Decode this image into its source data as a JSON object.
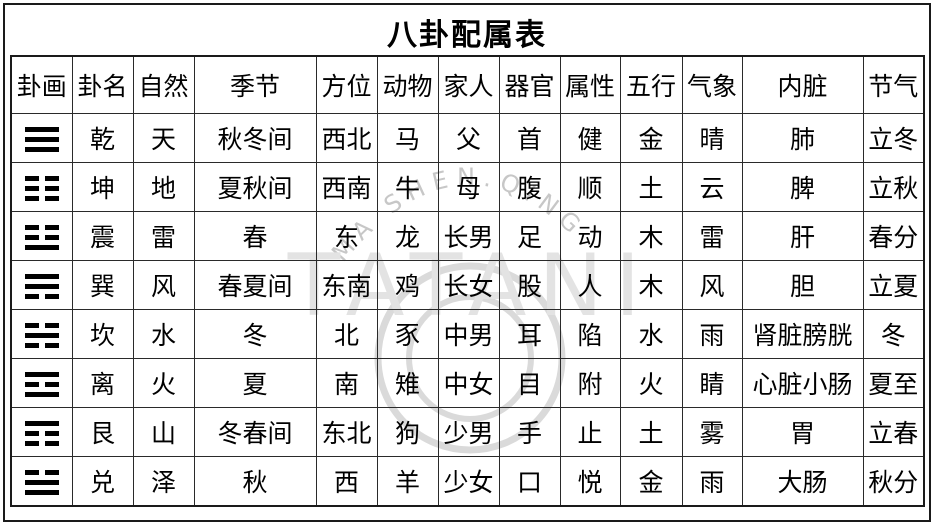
{
  "title": "八卦配属表",
  "watermark": {
    "arc_text": "MA SHEN.QING",
    "brand_text": "TATANI"
  },
  "colors": {
    "text": "#000000",
    "border": "#1a1a1a",
    "watermark_arc": "#c7c7c7",
    "watermark_ring": "#dadada",
    "watermark_brand": "#e3e3e3"
  },
  "table": {
    "columns": [
      "卦画",
      "卦名",
      "自然",
      "季节",
      "方位",
      "动物",
      "家人",
      "器官",
      "属性",
      "五行",
      "气象",
      "内脏",
      "节气"
    ],
    "rows": [
      {
        "trigram": [
          "solid",
          "solid",
          "solid"
        ],
        "cells": [
          "乾",
          "天",
          "秋冬间",
          "西北",
          "马",
          "父",
          "首",
          "健",
          "金",
          "晴",
          "肺",
          "立冬"
        ]
      },
      {
        "trigram": [
          "broken",
          "broken",
          "broken"
        ],
        "cells": [
          "坤",
          "地",
          "夏秋间",
          "西南",
          "牛",
          "母",
          "腹",
          "顺",
          "土",
          "云",
          "脾",
          "立秋"
        ]
      },
      {
        "trigram": [
          "broken",
          "broken",
          "solid"
        ],
        "cells": [
          "震",
          "雷",
          "春",
          "东",
          "龙",
          "长男",
          "足",
          "动",
          "木",
          "雷",
          "肝",
          "春分"
        ]
      },
      {
        "trigram": [
          "solid",
          "solid",
          "broken"
        ],
        "cells": [
          "巽",
          "风",
          "春夏间",
          "东南",
          "鸡",
          "长女",
          "股",
          "人",
          "木",
          "风",
          "胆",
          "立夏"
        ]
      },
      {
        "trigram": [
          "broken",
          "solid",
          "broken"
        ],
        "cells": [
          "坎",
          "水",
          "冬",
          "北",
          "豕",
          "中男",
          "耳",
          "陷",
          "水",
          "雨",
          "肾脏膀胱",
          "冬"
        ]
      },
      {
        "trigram": [
          "solid",
          "broken",
          "solid"
        ],
        "cells": [
          "离",
          "火",
          "夏",
          "南",
          "雉",
          "中女",
          "目",
          "附",
          "火",
          "睛",
          "心脏小肠",
          "夏至"
        ]
      },
      {
        "trigram": [
          "solid",
          "broken",
          "broken"
        ],
        "cells": [
          "艮",
          "山",
          "冬春间",
          "东北",
          "狗",
          "少男",
          "手",
          "止",
          "土",
          "雾",
          "胃",
          "立春"
        ]
      },
      {
        "trigram": [
          "broken",
          "solid",
          "solid"
        ],
        "cells": [
          "兑",
          "泽",
          "秋",
          "西",
          "羊",
          "少女",
          "口",
          "悦",
          "金",
          "雨",
          "大肠",
          "秋分"
        ]
      }
    ]
  }
}
